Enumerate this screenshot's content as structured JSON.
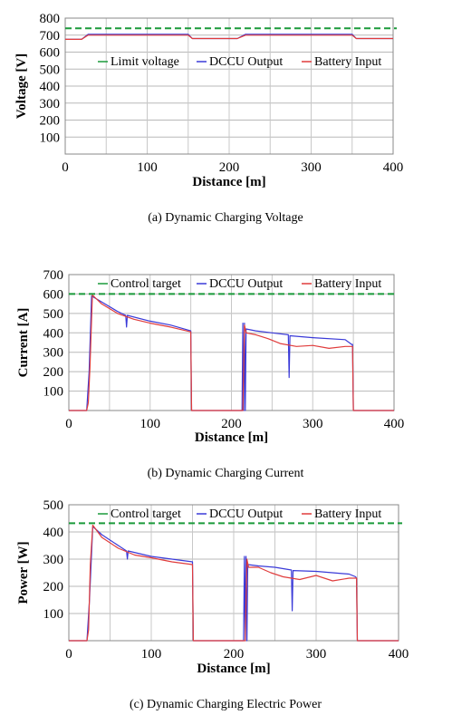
{
  "chart_data": [
    {
      "type": "line",
      "caption": "(a) Dynamic Charging Voltage",
      "xlabel": "Distance  [m]",
      "ylabel": "Voltage  [V]",
      "xlim": [
        0,
        400
      ],
      "ylim": [
        0,
        800
      ],
      "xticks": [
        0,
        100,
        200,
        300,
        400
      ],
      "yticks": [
        100,
        200,
        300,
        400,
        500,
        600,
        700,
        800
      ],
      "grid": true,
      "legend_position": "top",
      "reference": {
        "name": "Limit  voltage",
        "value": 740,
        "color": "#1a9a3a",
        "style": "dashed"
      },
      "series": [
        {
          "name": "DCCU Output",
          "color": "#3a3ad8",
          "x": [
            0,
            20,
            28,
            150,
            155,
            210,
            220,
            350,
            355,
            400
          ],
          "y": [
            675,
            675,
            705,
            705,
            680,
            680,
            705,
            705,
            680,
            680
          ]
        },
        {
          "name": "Battery Input",
          "color": "#e03c3c",
          "x": [
            0,
            20,
            28,
            150,
            155,
            210,
            220,
            350,
            355,
            400
          ],
          "y": [
            675,
            675,
            700,
            700,
            680,
            680,
            700,
            700,
            680,
            680
          ]
        }
      ]
    },
    {
      "type": "line",
      "caption": "(b) Dynamic Charging Current",
      "xlabel": "Distance  [m]",
      "ylabel": "Current  [A]",
      "xlim": [
        0,
        400
      ],
      "ylim": [
        0,
        700
      ],
      "xticks": [
        0,
        100,
        200,
        300,
        400
      ],
      "yticks": [
        100,
        200,
        300,
        400,
        500,
        600,
        700
      ],
      "grid": true,
      "legend_position": "top",
      "reference": {
        "name": "Control  target",
        "value": 600,
        "color": "#1a9a3a",
        "style": "dashed"
      },
      "series": [
        {
          "name": "DCCU Output",
          "color": "#3a3ad8",
          "x": [
            0,
            22,
            25,
            28,
            40,
            60,
            70,
            71,
            72,
            100,
            125,
            150,
            151,
            152,
            213,
            214,
            215,
            216,
            217,
            218,
            230,
            250,
            270,
            271,
            272,
            300,
            340,
            348,
            349,
            350,
            400
          ],
          "y": [
            0,
            0,
            200,
            590,
            560,
            510,
            490,
            430,
            490,
            460,
            440,
            410,
            0,
            0,
            0,
            450,
            0,
            450,
            0,
            420,
            410,
            400,
            390,
            170,
            385,
            375,
            365,
            340,
            340,
            0,
            0
          ]
        },
        {
          "name": "Battery Input",
          "color": "#e03c3c",
          "x": [
            0,
            22,
            24,
            26,
            29,
            40,
            60,
            80,
            100,
            125,
            150,
            151,
            152,
            214,
            216,
            218,
            230,
            245,
            260,
            280,
            300,
            320,
            340,
            348,
            349,
            350,
            400
          ],
          "y": [
            0,
            0,
            40,
            220,
            595,
            550,
            500,
            470,
            450,
            430,
            405,
            0,
            0,
            0,
            440,
            400,
            390,
            370,
            345,
            330,
            335,
            320,
            330,
            330,
            330,
            0,
            0
          ]
        }
      ]
    },
    {
      "type": "line",
      "caption": "(c) Dynamic Charging Electric Power",
      "xlabel": "Distance  [m]",
      "ylabel": "Power  [W]",
      "xlim": [
        0,
        400
      ],
      "ylim": [
        0,
        500
      ],
      "xticks": [
        0,
        100,
        200,
        300,
        400
      ],
      "yticks": [
        100,
        200,
        300,
        400,
        500
      ],
      "grid": true,
      "legend_position": "top",
      "reference": {
        "name": "Control  target",
        "value": 432,
        "color": "#1a9a3a",
        "style": "dashed"
      },
      "series": [
        {
          "name": "DCCU Output",
          "color": "#3a3ad8",
          "x": [
            0,
            22,
            25,
            29,
            40,
            60,
            70,
            71,
            72,
            100,
            125,
            150,
            151,
            152,
            212,
            213,
            214,
            215,
            216,
            217,
            230,
            250,
            270,
            271,
            272,
            300,
            340,
            348,
            349,
            350,
            400
          ],
          "y": [
            0,
            0,
            150,
            420,
            390,
            350,
            330,
            300,
            330,
            310,
            300,
            290,
            0,
            0,
            0,
            310,
            0,
            310,
            0,
            280,
            275,
            270,
            260,
            110,
            258,
            255,
            245,
            235,
            230,
            0,
            0
          ]
        },
        {
          "name": "Battery Input",
          "color": "#e03c3c",
          "x": [
            0,
            22,
            24,
            26,
            29,
            40,
            60,
            80,
            100,
            125,
            150,
            151,
            152,
            214,
            216,
            218,
            230,
            245,
            260,
            280,
            300,
            320,
            340,
            348,
            349,
            350,
            400
          ],
          "y": [
            0,
            0,
            40,
            280,
            425,
            380,
            340,
            315,
            305,
            290,
            280,
            0,
            0,
            0,
            300,
            270,
            270,
            250,
            235,
            225,
            240,
            220,
            230,
            230,
            230,
            0,
            0
          ]
        }
      ]
    }
  ]
}
